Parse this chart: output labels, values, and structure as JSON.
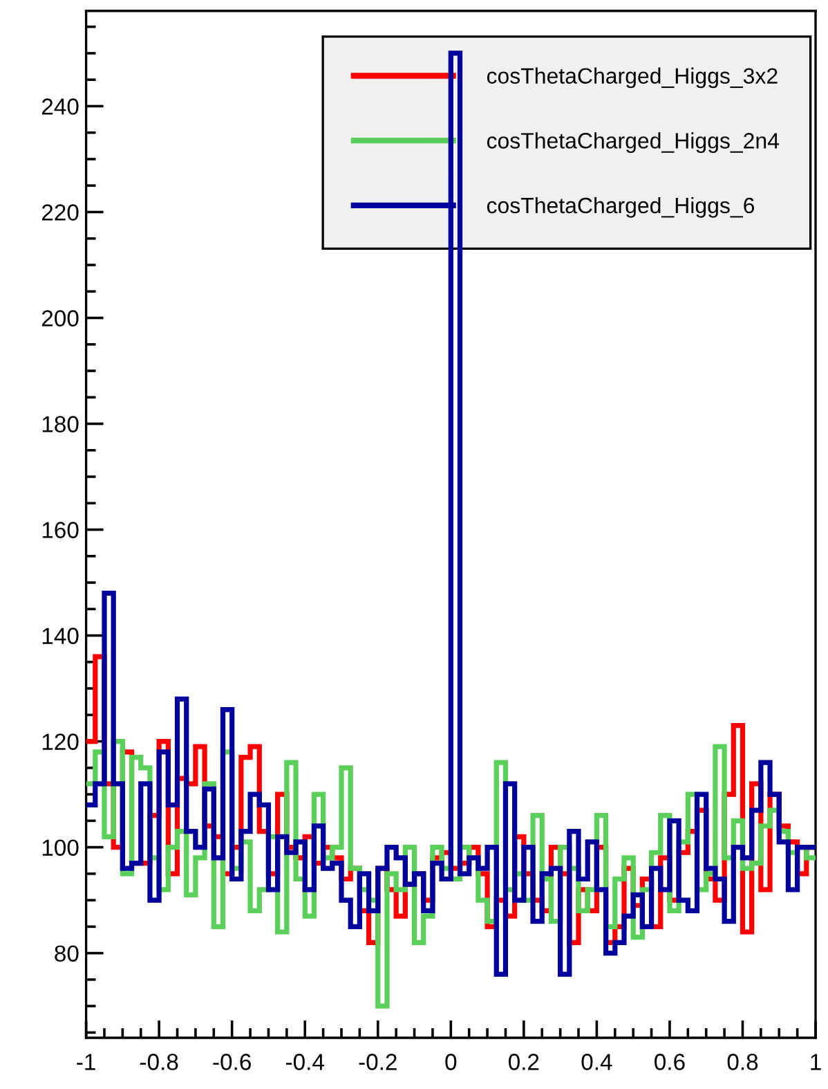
{
  "chart_data": {
    "type": "histogram",
    "bins": [
      -1.0,
      -0.975,
      -0.95,
      -0.925,
      -0.9,
      -0.875,
      -0.85,
      -0.825,
      -0.8,
      -0.775,
      -0.75,
      -0.725,
      -0.7,
      -0.675,
      -0.65,
      -0.625,
      -0.6,
      -0.575,
      -0.55,
      -0.525,
      -0.5,
      -0.475,
      -0.45,
      -0.425,
      -0.4,
      -0.375,
      -0.35,
      -0.325,
      -0.3,
      -0.275,
      -0.25,
      -0.225,
      -0.2,
      -0.175,
      -0.15,
      -0.125,
      -0.1,
      -0.075,
      -0.05,
      -0.025,
      0.0,
      0.025,
      0.05,
      0.075,
      0.1,
      0.125,
      0.15,
      0.175,
      0.2,
      0.225,
      0.25,
      0.275,
      0.3,
      0.325,
      0.35,
      0.375,
      0.4,
      0.425,
      0.45,
      0.475,
      0.5,
      0.525,
      0.55,
      0.575,
      0.6,
      0.625,
      0.65,
      0.675,
      0.7,
      0.725,
      0.75,
      0.775,
      0.8,
      0.825,
      0.85,
      0.875,
      0.9,
      0.925,
      0.95,
      0.975,
      1.0
    ],
    "series": [
      {
        "name": "cosThetaCharged_Higgs_3x2",
        "color": "#ff0000",
        "values": [
          120,
          136,
          112,
          100,
          118,
          97,
          97,
          106,
          120,
          95,
          113,
          112,
          119,
          104,
          102,
          95,
          100,
          117,
          119,
          103,
          95,
          110,
          100,
          98,
          102,
          97,
          100,
          98,
          94,
          96,
          88,
          82,
          96,
          92,
          87,
          93,
          95,
          90,
          98,
          99,
          96,
          97,
          100,
          95,
          85,
          90,
          87,
          102,
          95,
          90,
          88,
          100,
          95,
          82,
          92,
          88,
          100,
          82,
          85,
          96,
          89,
          94,
          85,
          98,
          90,
          99,
          103,
          107,
          94,
          90,
          110,
          123,
          84,
          112,
          92,
          110,
          104,
          101,
          95,
          100
        ]
      },
      {
        "name": "cosThetaCharged_Higgs_2n4",
        "color": "#5ad05a",
        "values": [
          112,
          118,
          102,
          120,
          95,
          117,
          115,
          98,
          92,
          100,
          103,
          91,
          98,
          112,
          85,
          118,
          96,
          101,
          88,
          92,
          102,
          84,
          116,
          94,
          87,
          110,
          98,
          100,
          115,
          96,
          92,
          90,
          70,
          95,
          92,
          100,
          82,
          87,
          100,
          96,
          94,
          100,
          98,
          90,
          86,
          116,
          92,
          95,
          90,
          106,
          94,
          86,
          100,
          96,
          88,
          92,
          106,
          85,
          94,
          98,
          83,
          92,
          99,
          106,
          88,
          101,
          110,
          92,
          95,
          119,
          98,
          105,
          96,
          97,
          104,
          107,
          103,
          99,
          100,
          98
        ]
      },
      {
        "name": "cosThetaCharged_Higgs_6",
        "color": "#00009c",
        "values": [
          108,
          112,
          148,
          112,
          96,
          97,
          112,
          90,
          118,
          108,
          128,
          103,
          100,
          111,
          98,
          126,
          94,
          103,
          110,
          108,
          92,
          102,
          99,
          101,
          92,
          104,
          96,
          97,
          90,
          85,
          95,
          88,
          96,
          100,
          98,
          93,
          95,
          88,
          97,
          94,
          250,
          95,
          98,
          96,
          100,
          76,
          112,
          90,
          100,
          86,
          95,
          96,
          76,
          103,
          94,
          101,
          92,
          80,
          82,
          87,
          91,
          85,
          96,
          92,
          105,
          90,
          88,
          110,
          96,
          94,
          86,
          100,
          98,
          107,
          116,
          110,
          101,
          92,
          100,
          100
        ]
      }
    ],
    "xlim": [
      -1,
      1
    ],
    "xticks": [
      -1,
      {
        "value": -0.95,
        "label": null
      },
      {
        "value": -0.9,
        "label": null
      },
      {
        "value": -0.85,
        "label": null
      },
      -0.8,
      {
        "value": -0.75,
        "label": null
      },
      {
        "value": -0.7,
        "label": null
      },
      {
        "value": -0.65,
        "label": null
      },
      -0.6,
      {
        "value": -0.55,
        "label": null
      },
      {
        "value": -0.5,
        "label": null
      },
      {
        "value": -0.45,
        "label": null
      },
      -0.4,
      {
        "value": -0.35,
        "label": null
      },
      {
        "value": -0.3,
        "label": null
      },
      {
        "value": -0.25,
        "label": null
      },
      -0.2,
      {
        "value": -0.15,
        "label": null
      },
      {
        "value": -0.1,
        "label": null
      },
      {
        "value": -0.05,
        "label": null
      },
      0,
      {
        "value": 0.05,
        "label": null
      },
      {
        "value": 0.1,
        "label": null
      },
      {
        "value": 0.15,
        "label": null
      },
      0.2,
      {
        "value": 0.25,
        "label": null
      },
      {
        "value": 0.3,
        "label": null
      },
      {
        "value": 0.35,
        "label": null
      },
      0.4,
      {
        "value": 0.45,
        "label": null
      },
      {
        "value": 0.5,
        "label": null
      },
      {
        "value": 0.55,
        "label": null
      },
      0.6,
      {
        "value": 0.65,
        "label": null
      },
      {
        "value": 0.7,
        "label": null
      },
      {
        "value": 0.75,
        "label": null
      },
      0.8,
      {
        "value": 0.85,
        "label": null
      },
      {
        "value": 0.9,
        "label": null
      },
      {
        "value": 0.95,
        "label": null
      },
      1
    ],
    "ylim": [
      64,
      258
    ],
    "yticks": [
      {
        "value": 65,
        "label": null
      },
      {
        "value": 70,
        "label": null
      },
      {
        "value": 75,
        "label": null
      },
      80,
      {
        "value": 85,
        "label": null
      },
      {
        "value": 90,
        "label": null
      },
      {
        "value": 95,
        "label": null
      },
      100,
      {
        "value": 105,
        "label": null
      },
      {
        "value": 110,
        "label": null
      },
      {
        "value": 115,
        "label": null
      },
      120,
      {
        "value": 125,
        "label": null
      },
      {
        "value": 130,
        "label": null
      },
      {
        "value": 135,
        "label": null
      },
      140,
      {
        "value": 145,
        "label": null
      },
      {
        "value": 150,
        "label": null
      },
      {
        "value": 155,
        "label": null
      },
      160,
      {
        "value": 165,
        "label": null
      },
      {
        "value": 170,
        "label": null
      },
      {
        "value": 175,
        "label": null
      },
      180,
      {
        "value": 185,
        "label": null
      },
      {
        "value": 190,
        "label": null
      },
      {
        "value": 195,
        "label": null
      },
      200,
      {
        "value": 205,
        "label": null
      },
      {
        "value": 210,
        "label": null
      },
      {
        "value": 215,
        "label": null
      },
      220,
      {
        "value": 225,
        "label": null
      },
      {
        "value": 230,
        "label": null
      },
      {
        "value": 235,
        "label": null
      },
      240,
      {
        "value": 245,
        "label": null
      },
      {
        "value": 250,
        "label": null
      },
      {
        "value": 255,
        "label": null
      }
    ],
    "legend": "top right"
  }
}
